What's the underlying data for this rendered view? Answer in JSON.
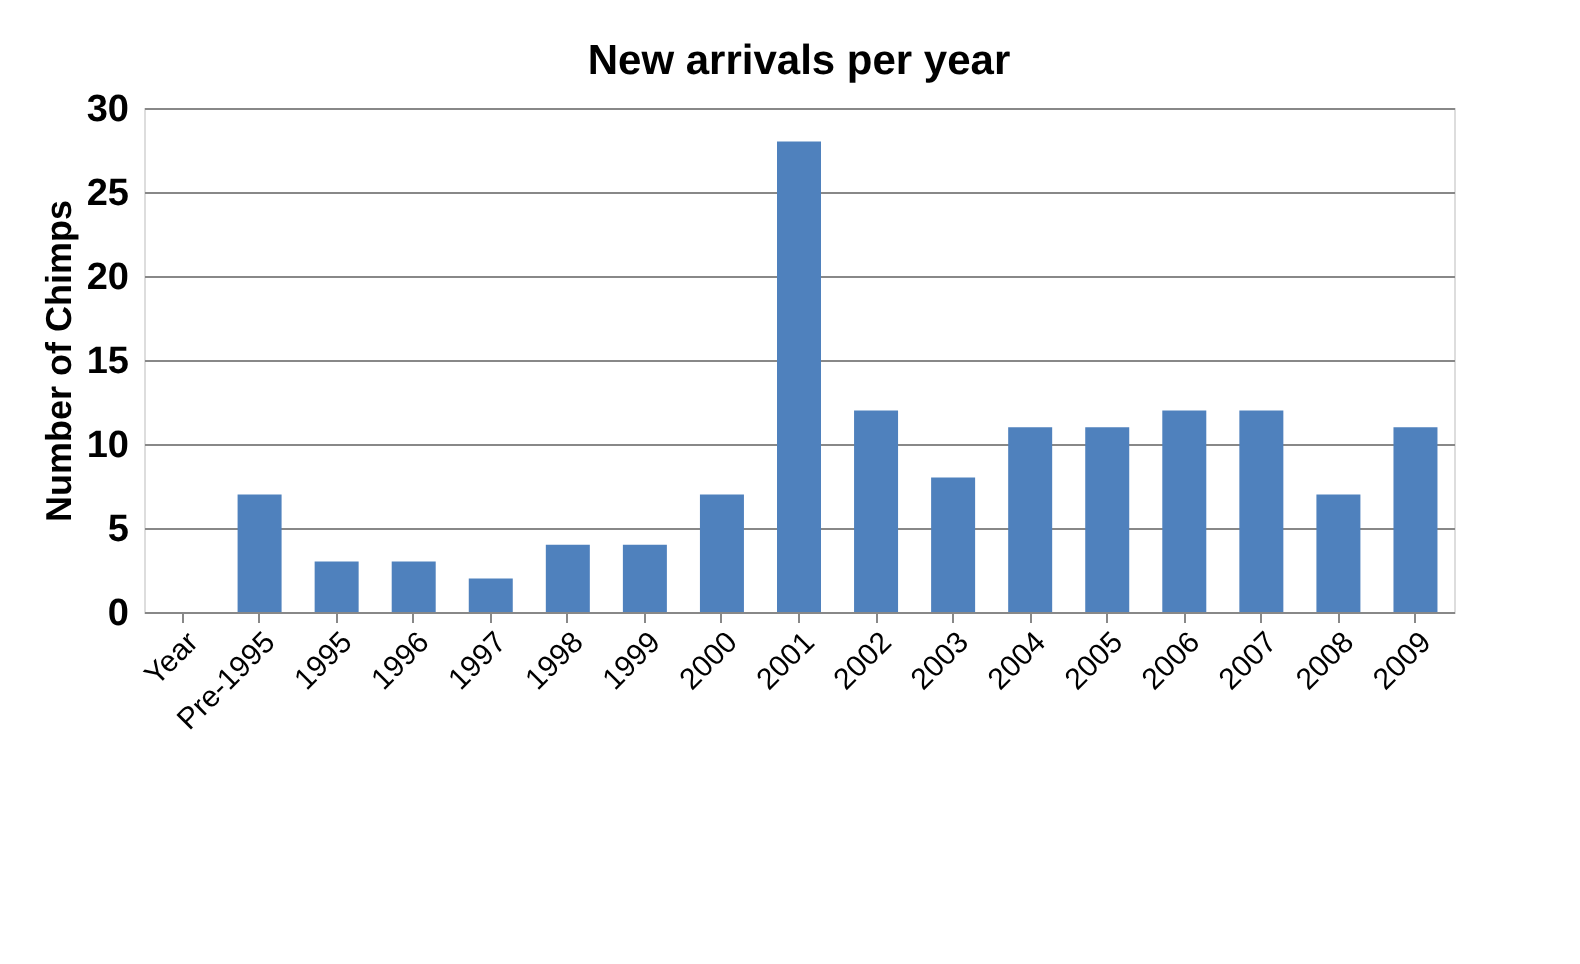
{
  "chart_data": {
    "type": "bar",
    "title": "New arrivals per year",
    "ylabel": "Number of Chimps",
    "categories": [
      "Year",
      "Pre-1995",
      "1995",
      "1996",
      "1997",
      "1998",
      "1999",
      "2000",
      "2001",
      "2002",
      "2003",
      "2004",
      "2005",
      "2006",
      "2007",
      "2008",
      "2009"
    ],
    "values": [
      null,
      7,
      3,
      3,
      2,
      4,
      4,
      7,
      28,
      12,
      8,
      11,
      11,
      12,
      12,
      7,
      11
    ],
    "color": "#4f81bd",
    "ylim": [
      0,
      30
    ],
    "yticks": [
      0,
      5,
      10,
      15,
      20,
      25,
      30
    ],
    "grid": "y",
    "legend": false
  }
}
